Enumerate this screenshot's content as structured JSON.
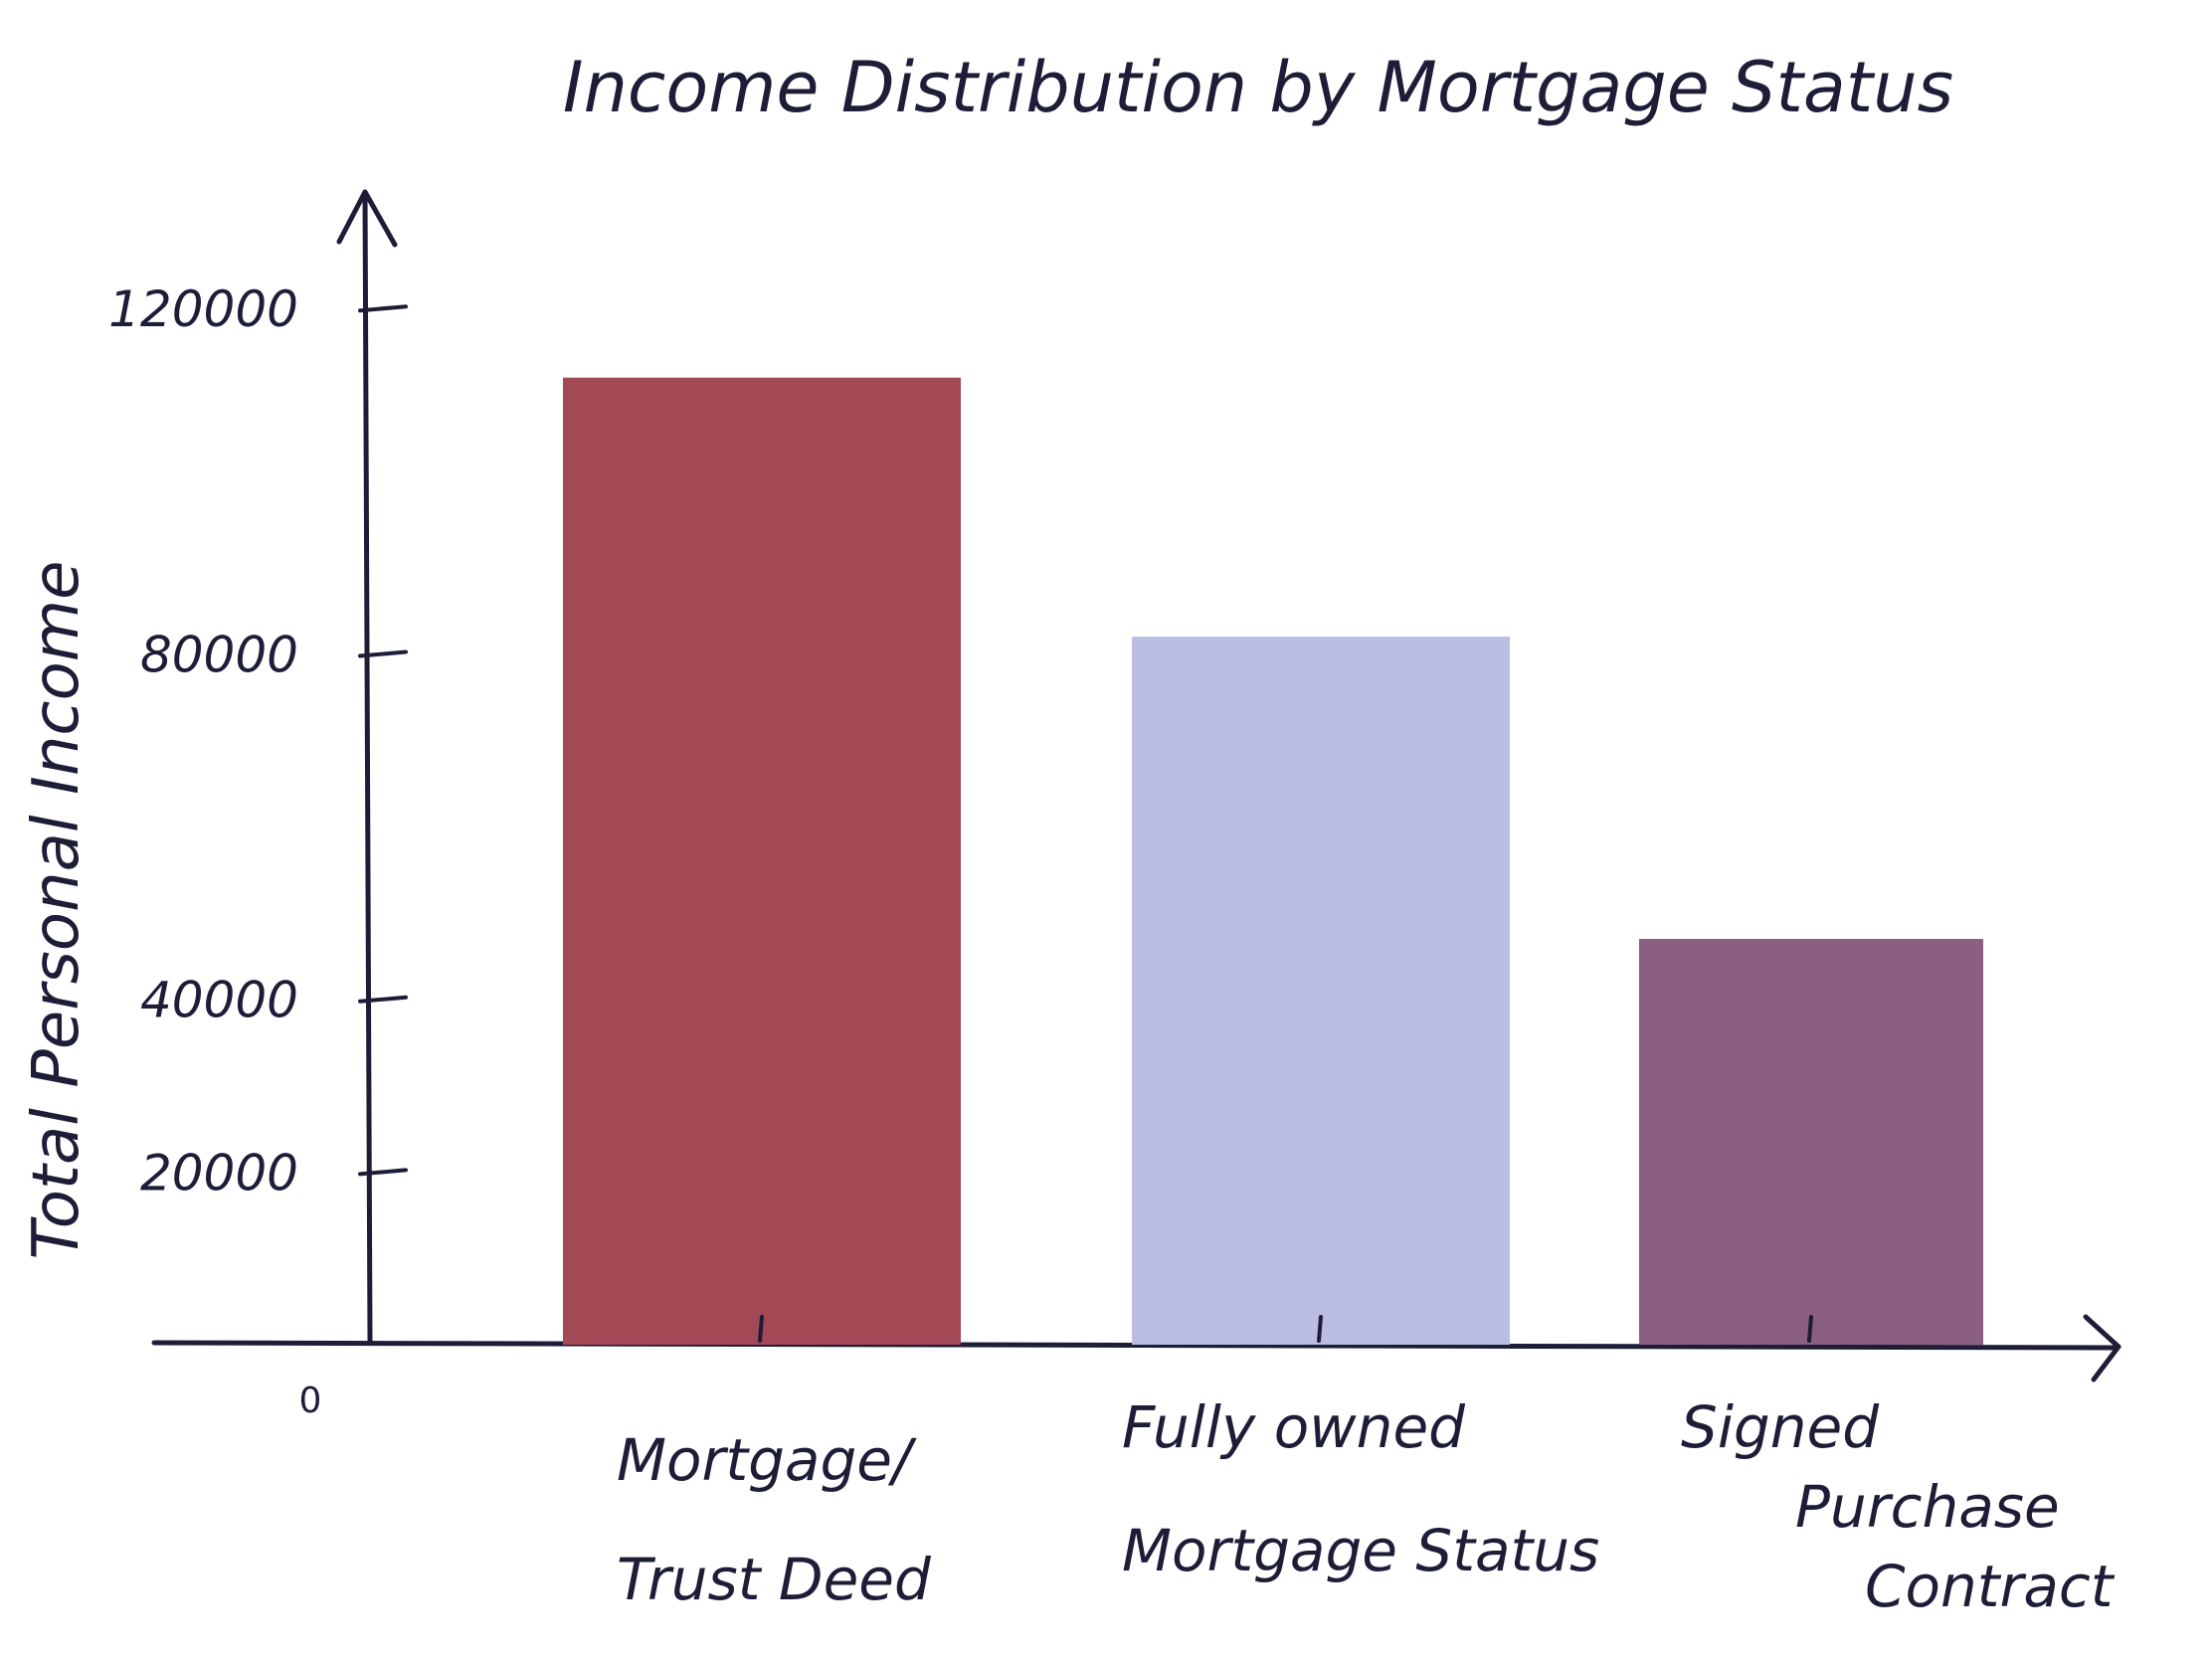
{
  "chart_data": {
    "type": "bar",
    "title": "Income Distribution by Mortgage Status",
    "xlabel": "",
    "ylabel": "Total Personal Income",
    "categories": [
      [
        "Mortgage/",
        "Trust Deed"
      ],
      [
        "Fully owned",
        "Mortgage Status"
      ],
      [
        "Signed",
        "Purchase",
        "Contract"
      ]
    ],
    "values": [
      112000,
      82000,
      47000
    ],
    "colors": [
      "#a34855",
      "#bbbee2",
      "#8b5f80"
    ],
    "yticks": [
      20000,
      40000,
      80000,
      120000
    ],
    "ytick_labels": [
      "20000",
      "40000",
      "80000",
      "120000"
    ],
    "zero_label": "0",
    "ylim": [
      0,
      135000
    ],
    "grid": false,
    "legend": "none"
  }
}
